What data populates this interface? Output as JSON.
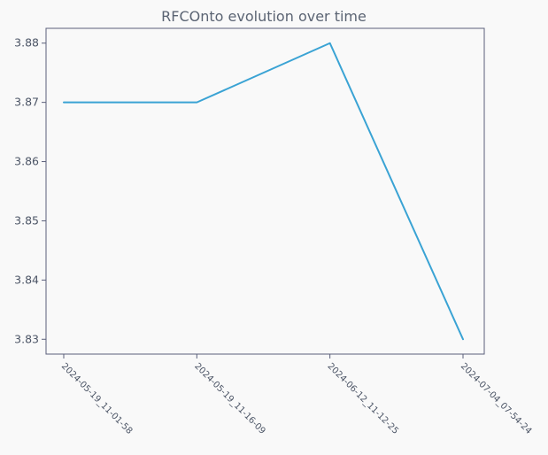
{
  "colors": {
    "background": "#f9f9f9",
    "axes": "#5a5f7a",
    "text": "#4c5566",
    "line": "#3aa3d4"
  },
  "chart_data": {
    "type": "line",
    "title": "RFCOnto evolution over time",
    "xlabel": "",
    "ylabel": "",
    "categories": [
      "2024-05-19_11-01-58",
      "2024-05-19_11-16-09",
      "2024-06-12_11-12-25",
      "2024-07-04_07-54-24"
    ],
    "series": [
      {
        "values": [
          3.87,
          3.87,
          3.88,
          3.83
        ]
      }
    ],
    "yticks": [
      3.83,
      3.84,
      3.85,
      3.86,
      3.87,
      3.88
    ],
    "ylim": [
      3.8275,
      3.8825
    ],
    "grid": false,
    "legend": "none"
  }
}
